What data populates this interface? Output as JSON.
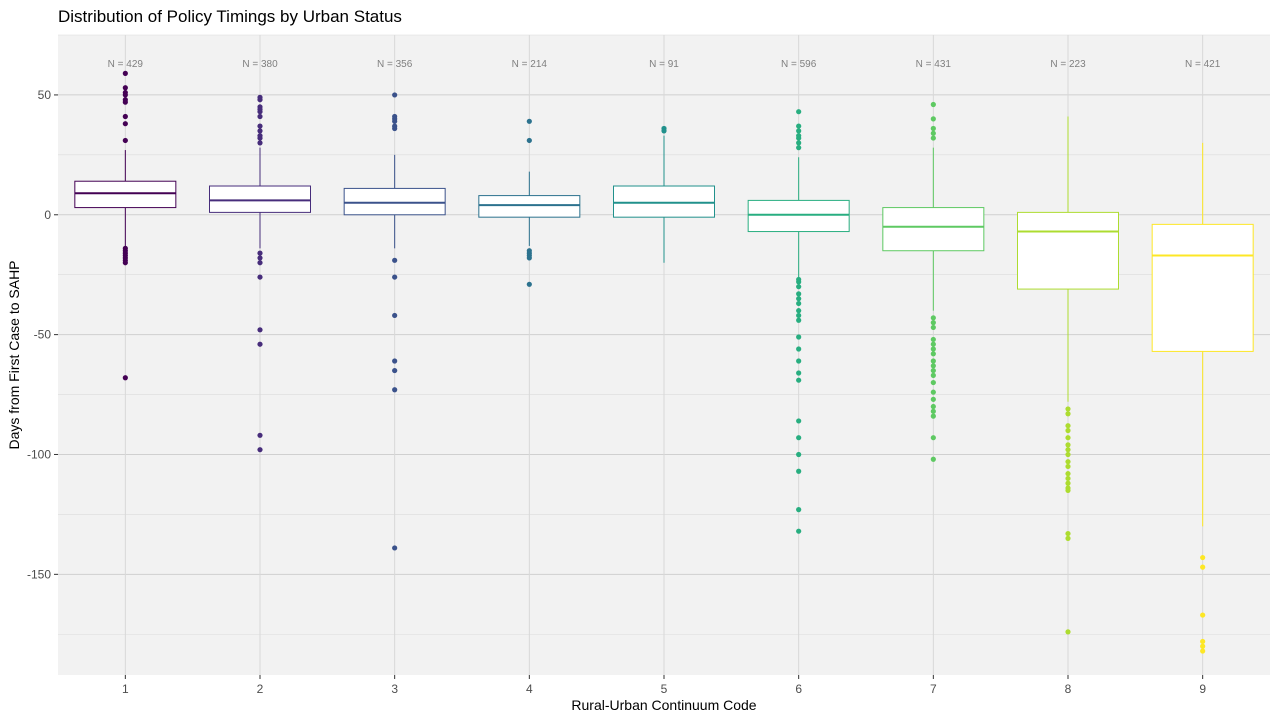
{
  "chart_data": {
    "type": "boxplot",
    "title": "Distribution of Policy Timings by Urban Status",
    "xlabel": "Rural-Urban Continuum Code",
    "ylabel": "Days from First Case to SAHP",
    "ylim": [
      -192,
      75
    ],
    "y_ticks": [
      50,
      0,
      -50,
      -100,
      -150
    ],
    "y_tick_labels": [
      "50",
      "0",
      "-50",
      "-100",
      "-150"
    ],
    "grid": true,
    "legend": "none",
    "categories": [
      "1",
      "2",
      "3",
      "4",
      "5",
      "6",
      "7",
      "8",
      "9"
    ],
    "n_labels": [
      "N = 429",
      "N = 380",
      "N = 356",
      "N = 214",
      "N = 91",
      "N = 596",
      "N = 431",
      "N = 223",
      "N = 421"
    ],
    "colors": [
      "#440154",
      "#472d7b",
      "#3b528b",
      "#2c728e",
      "#21918c",
      "#28ae80",
      "#5ec962",
      "#addc30",
      "#fde725"
    ],
    "boxes": [
      {
        "whisker_low": -14,
        "q1": 3,
        "median": 9,
        "q3": 14,
        "whisker_high": 27,
        "outliers": [
          59,
          53,
          51,
          50,
          48,
          47,
          41,
          38,
          31,
          -14,
          -15,
          -16,
          -17,
          -18,
          -19,
          -20,
          -68
        ]
      },
      {
        "whisker_low": -14,
        "q1": 1,
        "median": 6,
        "q3": 12,
        "whisker_high": 28,
        "outliers": [
          49,
          48,
          45,
          44,
          43,
          41,
          37,
          35,
          33,
          32,
          30,
          -16,
          -18,
          -20,
          -26,
          -48,
          -54,
          -92,
          -98
        ]
      },
      {
        "whisker_low": -14,
        "q1": 0,
        "median": 5,
        "q3": 11,
        "whisker_high": 25,
        "outliers": [
          50,
          41,
          40,
          39,
          37,
          36,
          -19,
          -26,
          -42,
          -61,
          -65,
          -73,
          -139
        ]
      },
      {
        "whisker_low": -13,
        "q1": -1,
        "median": 4,
        "q3": 8,
        "whisker_high": 18,
        "outliers": [
          39,
          31,
          -15,
          -16,
          -17,
          -18,
          -29
        ]
      },
      {
        "whisker_low": -20,
        "q1": -1,
        "median": 5,
        "q3": 12,
        "whisker_high": 33,
        "outliers": [
          36,
          35
        ]
      },
      {
        "whisker_low": -26,
        "q1": -7,
        "median": 0,
        "q3": 6,
        "whisker_high": 24,
        "outliers": [
          43,
          37,
          35,
          33,
          32,
          30,
          28,
          -27,
          -28,
          -30,
          -33,
          -35,
          -37,
          -40,
          -42,
          -44,
          -51,
          -56,
          -61,
          -66,
          -69,
          -86,
          -93,
          -100,
          -107,
          -123,
          -132
        ]
      },
      {
        "whisker_low": -40,
        "q1": -15,
        "median": -5,
        "q3": 3,
        "whisker_high": 28,
        "outliers": [
          46,
          40,
          36,
          34,
          32,
          -43,
          -45,
          -47,
          -52,
          -54,
          -56,
          -58,
          -61,
          -63,
          -65,
          -67,
          -70,
          -74,
          -77,
          -80,
          -82,
          -84,
          -93,
          -102
        ]
      },
      {
        "whisker_low": -78,
        "q1": -31,
        "median": -7,
        "q3": 1,
        "whisker_high": 41,
        "outliers": [
          -81,
          -83,
          -88,
          -90,
          -93,
          -96,
          -98,
          -100,
          -103,
          -105,
          -108,
          -110,
          -112,
          -114,
          -115,
          -133,
          -135,
          -174
        ]
      },
      {
        "whisker_low": -130,
        "q1": -57,
        "median": -17,
        "q3": -4,
        "whisker_high": 30,
        "outliers": [
          -143,
          -147,
          -167,
          -178,
          -180,
          -182
        ]
      }
    ]
  }
}
